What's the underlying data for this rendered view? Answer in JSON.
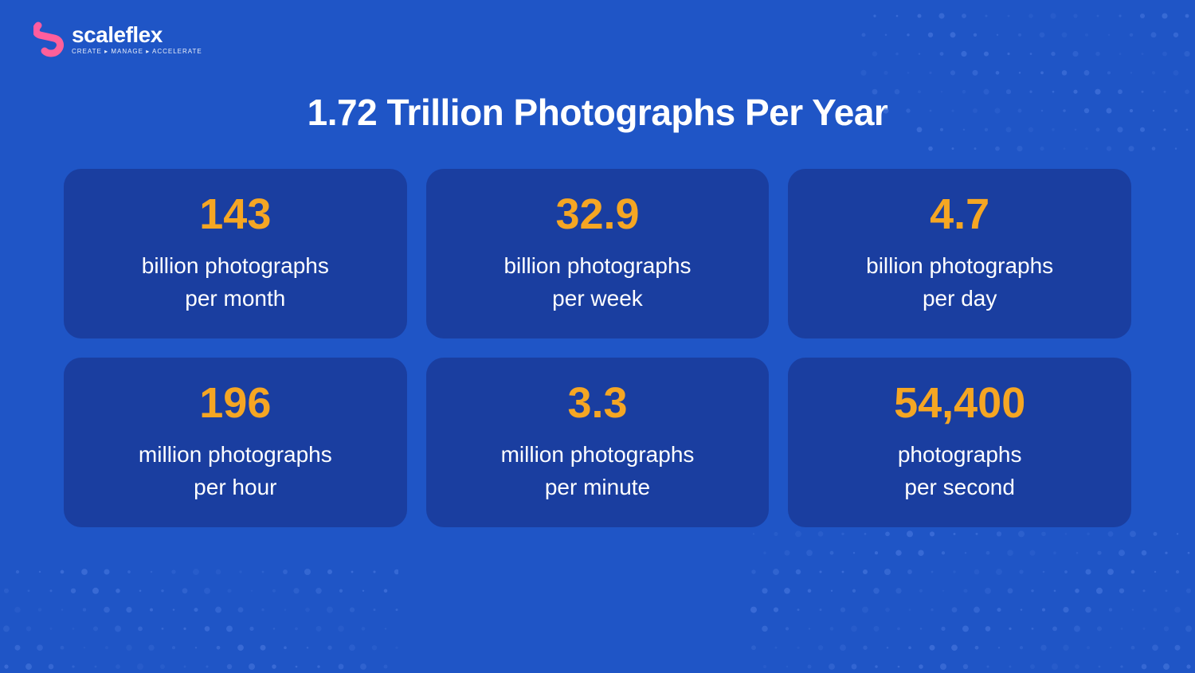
{
  "brand": {
    "name": "scaleflex",
    "tagline": "CREATE ▸ MANAGE ▸ ACCELERATE"
  },
  "title": "1.72 Trillion Photographs Per Year",
  "title_fontsize": 46,
  "background_color": "#1f55c6",
  "card_color": "#1a3ea0",
  "accent_color": "#f5a623",
  "text_color": "#ffffff",
  "dot_color": "#3e6fd8",
  "card_radius": 22,
  "grid_gap": 24,
  "value_fontsize": 54,
  "label_fontsize": 28,
  "stats": [
    {
      "value": "143",
      "label": "billion photographs\nper month"
    },
    {
      "value": "32.9",
      "label": "billion photographs\nper week"
    },
    {
      "value": "4.7",
      "label": "billion photographs\nper day"
    },
    {
      "value": "196",
      "label": "million photographs\nper hour"
    },
    {
      "value": "3.3",
      "label": "million photographs\nper minute"
    },
    {
      "value": "54,400",
      "label": "photographs\nper second"
    }
  ]
}
